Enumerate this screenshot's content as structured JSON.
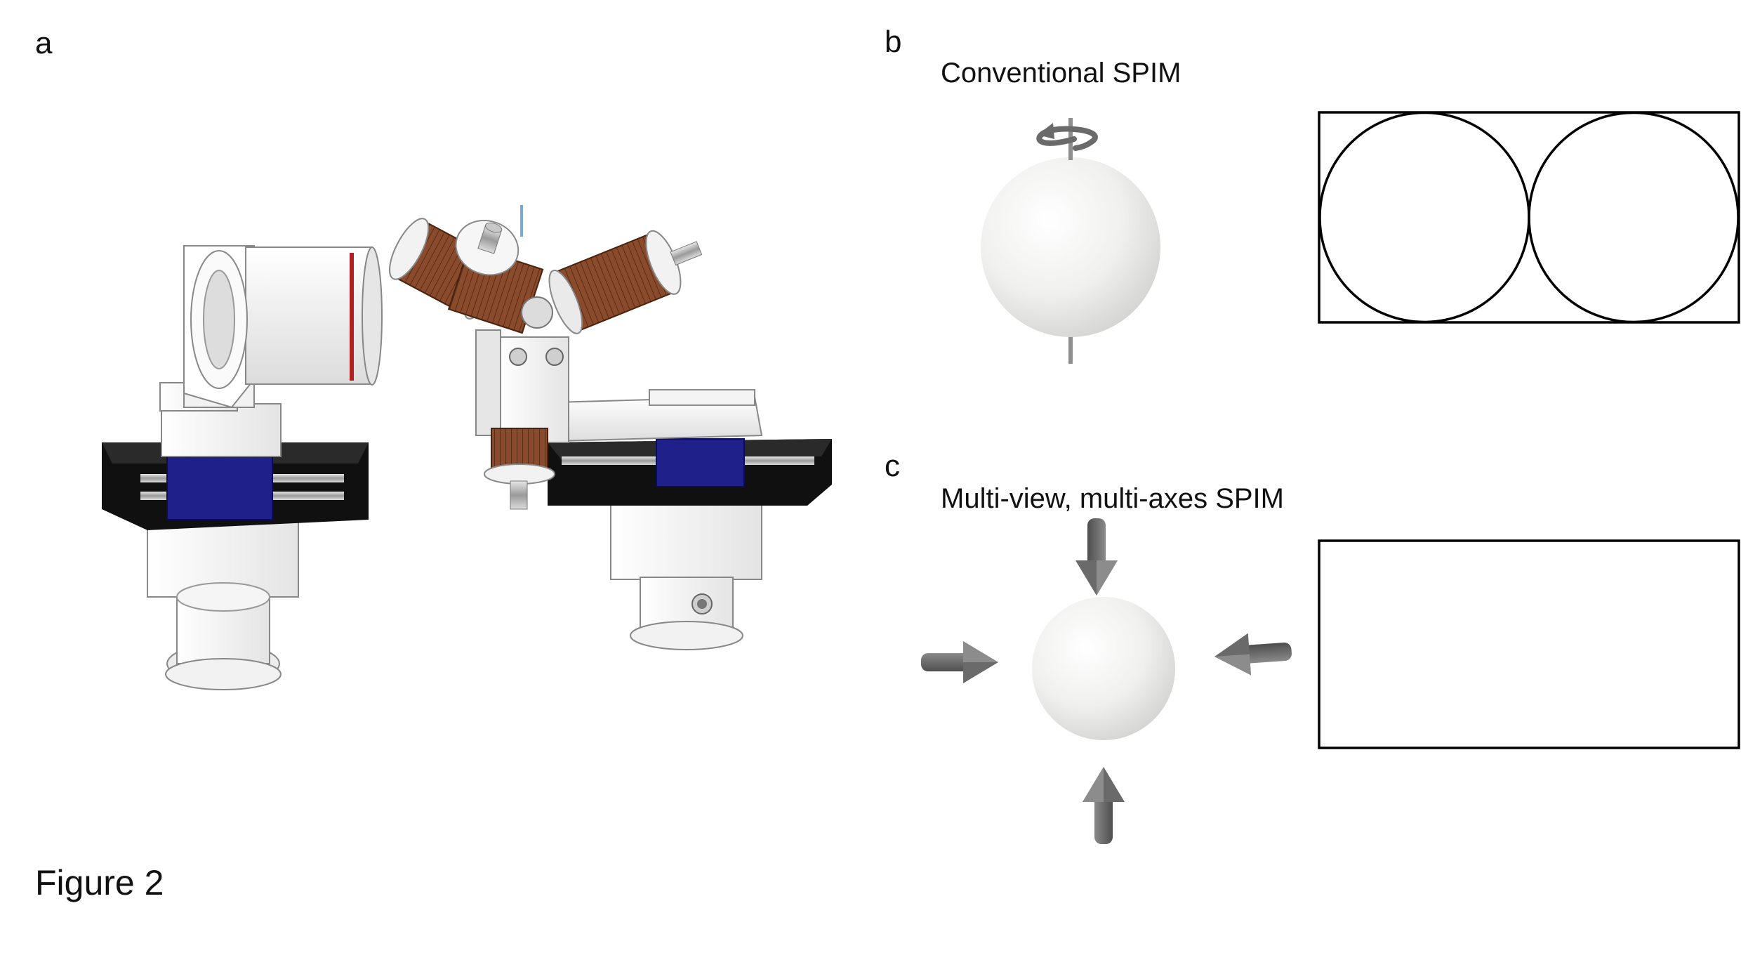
{
  "panels": {
    "a": {
      "letter": "a"
    },
    "b": {
      "letter": "b",
      "title": "Conventional SPIM"
    },
    "c": {
      "letter": "c",
      "title": "Multi-view, multi-axes SPIM"
    }
  },
  "caption": "Figure 2",
  "colors": {
    "aluminium": "#efefef",
    "slide_black": "#101010",
    "carriage_blue": "#20208a",
    "copper_coil": "#8a4a2c",
    "sphere_light": "#fafafa",
    "sphere_shade": "#d4d4d2",
    "arrow_grey": "#6a6a6a",
    "outline": "#000000"
  },
  "icons": [
    "rotation-arrow-icon",
    "arrow-down-icon",
    "arrow-up-icon",
    "arrow-left-icon",
    "arrow-right-icon"
  ]
}
